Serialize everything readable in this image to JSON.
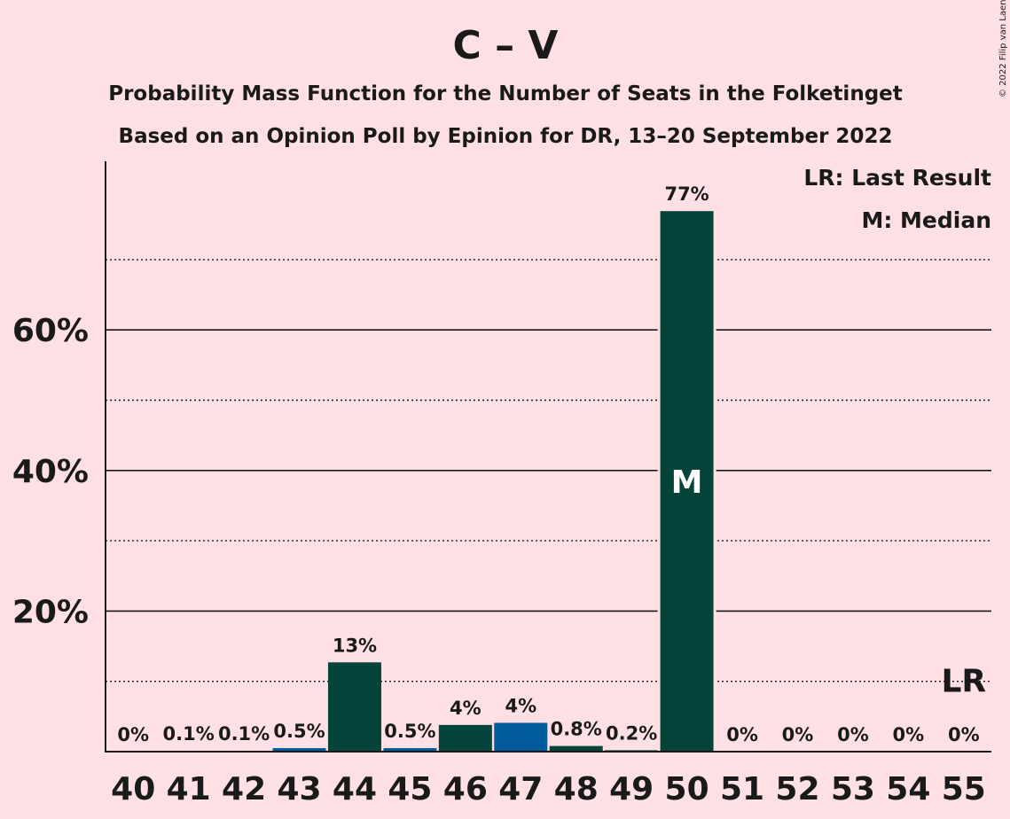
{
  "chart_data": {
    "type": "bar",
    "title": "C – V",
    "subtitle_1": "Probability Mass Function for the Number of Seats in the Folketinget",
    "subtitle_2": "Based on an Opinion Poll by Epinion for DR, 13–20 September 2022",
    "copyright": "© 2022 Filip van Laenen",
    "categories": [
      "40",
      "41",
      "42",
      "43",
      "44",
      "45",
      "46",
      "47",
      "48",
      "49",
      "50",
      "51",
      "52",
      "53",
      "54",
      "55"
    ],
    "values": [
      0,
      0.1,
      0.1,
      0.5,
      12.7,
      0.5,
      3.8,
      4.1,
      0.8,
      0.2,
      76.9,
      0,
      0,
      0,
      0,
      0
    ],
    "value_labels": [
      "0%",
      "0.1%",
      "0.1%",
      "0.5%",
      "13%",
      "0.5%",
      "4%",
      "4%",
      "0.8%",
      "0.2%",
      "77%",
      "0%",
      "0%",
      "0%",
      "0%",
      "0%"
    ],
    "bar_colors": [
      "#04443a",
      "#04443a",
      "#04443a",
      "#005a9c",
      "#04443a",
      "#005a9c",
      "#04443a",
      "#005a9c",
      "#04443a",
      "#04443a",
      "#04443a",
      "#04443a",
      "#04443a",
      "#04443a",
      "#04443a",
      "#04443a"
    ],
    "ylim": [
      0,
      84
    ],
    "y_major_ticks": [
      20,
      40,
      60
    ],
    "y_tick_labels": [
      "20%",
      "40%",
      "60%"
    ],
    "y_minor_gridlines": [
      10,
      30,
      50,
      70
    ],
    "median_category": "50",
    "median_marker": "M",
    "last_result_category": "55",
    "last_result_marker": "LR",
    "legend": [
      "LR: Last Result",
      "M: Median"
    ],
    "legend_position": "top-right",
    "grid": true
  }
}
